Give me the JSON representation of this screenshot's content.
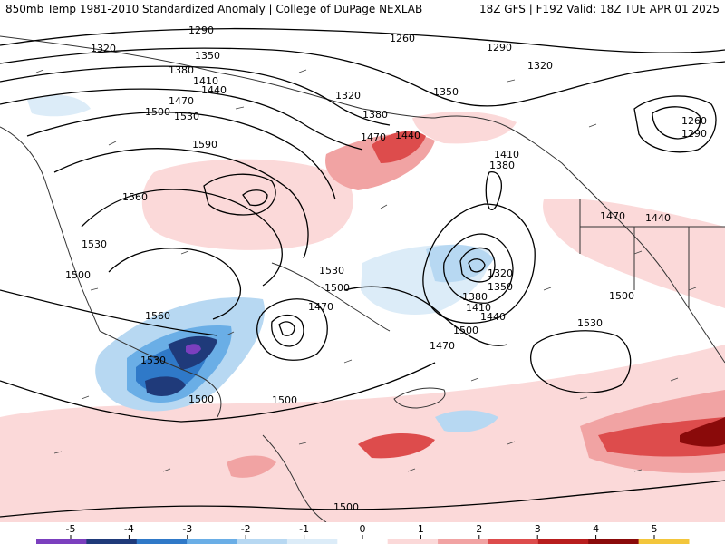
{
  "header": {
    "title": "850mb Temp 1981-2010 Standardized Anomaly | College of DuPage NEXLAB",
    "run_info": "18Z GFS | F192 Valid: 18Z TUE APR 01 2025"
  },
  "contour_labels": [
    "1290",
    "1260",
    "1320",
    "1350",
    "1290",
    "1320",
    "1380",
    "1410",
    "1440",
    "1320",
    "1350",
    "1470",
    "1500",
    "1530",
    "1380",
    "1470",
    "1440",
    "1410",
    "1380",
    "1260",
    "1290",
    "1590",
    "1560",
    "1470",
    "1440",
    "1530",
    "1500",
    "1320",
    "1350",
    "1380",
    "1410",
    "1440",
    "1530",
    "1500",
    "1470",
    "1500",
    "1560",
    "1470",
    "1500",
    "1530",
    "1500",
    "1530",
    "1500",
    "1500"
  ],
  "colorbar": {
    "ticks": [
      "-5",
      "-4",
      "-3",
      "-2",
      "-1",
      "0",
      "1",
      "2",
      "3",
      "4",
      "5"
    ],
    "colors": [
      "#7b3fbe",
      "#1f3a7a",
      "#2f79c8",
      "#6aaee6",
      "#b7d8f2",
      "#dcecf8",
      "#ffffff",
      "#fbd9d9",
      "#f1a3a3",
      "#dd4c4c",
      "#b81d1d",
      "#8a0a0a",
      "#f3c63b"
    ],
    "range": [
      -5,
      5
    ]
  },
  "colors": {
    "cold_strong": "#2f79c8",
    "cold_weak": "#b7d8f2",
    "warm_weak": "#fbd9d9",
    "warm_strong": "#c92626",
    "contour": "#000000",
    "land_outline": "#333333"
  }
}
